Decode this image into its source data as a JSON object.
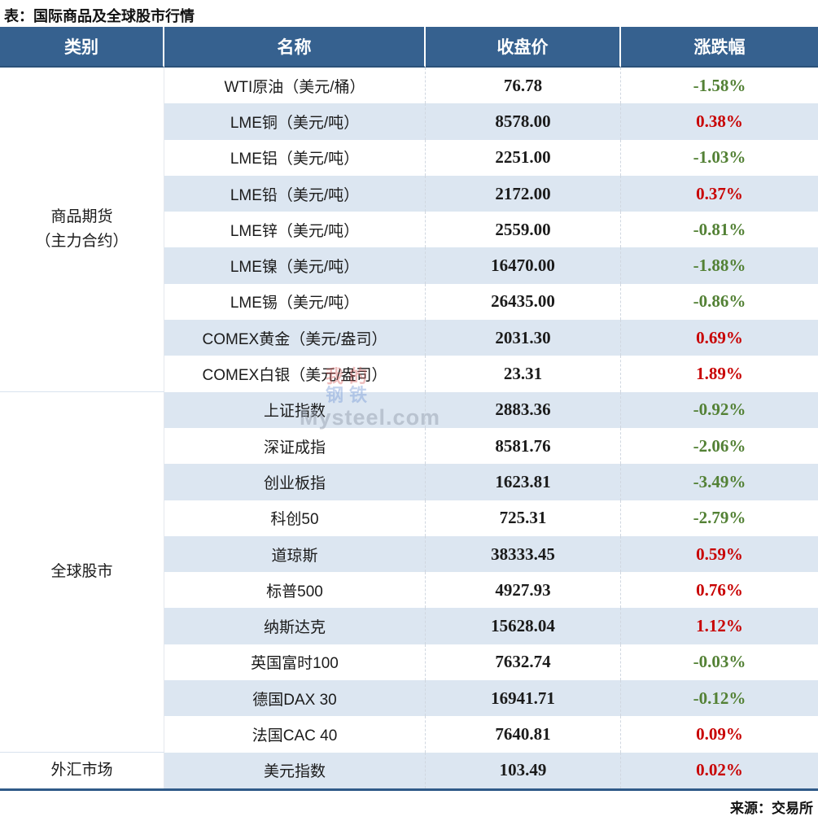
{
  "page_title": "表：国际商品及全球股市行情",
  "chart_data": {
    "type": "table",
    "title": "表：国际商品及全球股市行情",
    "columns": [
      "类别",
      "名称",
      "收盘价",
      "涨跌幅"
    ],
    "groups": [
      {
        "category": "商品期货（主力合约）",
        "category_display": "商品期货\n（主力合约）",
        "rows": [
          {
            "name": "WTI原油（美元/桶）",
            "close": "76.78",
            "change": "-1.58%"
          },
          {
            "name": "LME铜（美元/吨）",
            "close": "8578.00",
            "change": "0.38%"
          },
          {
            "name": "LME铝（美元/吨）",
            "close": "2251.00",
            "change": "-1.03%"
          },
          {
            "name": "LME铅（美元/吨）",
            "close": "2172.00",
            "change": "0.37%"
          },
          {
            "name": "LME锌（美元/吨）",
            "close": "2559.00",
            "change": "-0.81%"
          },
          {
            "name": "LME镍（美元/吨）",
            "close": "16470.00",
            "change": "-1.88%"
          },
          {
            "name": "LME锡（美元/吨）",
            "close": "26435.00",
            "change": "-0.86%"
          },
          {
            "name": "COMEX黄金（美元/盎司）",
            "close": "2031.30",
            "change": "0.69%"
          },
          {
            "name": "COMEX白银（美元/盎司）",
            "close": "23.31",
            "change": "1.89%"
          }
        ]
      },
      {
        "category": "全球股市",
        "rows": [
          {
            "name": "上证指数",
            "close": "2883.36",
            "change": "-0.92%"
          },
          {
            "name": "深证成指",
            "close": "8581.76",
            "change": "-2.06%"
          },
          {
            "name": "创业板指",
            "close": "1623.81",
            "change": "-3.49%"
          },
          {
            "name": "科创50",
            "close": "725.31",
            "change": "-2.79%"
          },
          {
            "name": "道琼斯",
            "close": "38333.45",
            "change": "0.59%"
          },
          {
            "name": "标普500",
            "close": "4927.93",
            "change": "0.76%"
          },
          {
            "name": "纳斯达克",
            "close": "15628.04",
            "change": "1.12%"
          },
          {
            "name": "英国富时100",
            "close": "7632.74",
            "change": "-0.03%"
          },
          {
            "name": "德国DAX 30",
            "close": "16941.71",
            "change": "-0.12%"
          },
          {
            "name": "法国CAC 40",
            "close": "7640.81",
            "change": "0.09%"
          }
        ]
      },
      {
        "category": "外汇市场",
        "rows": [
          {
            "name": "美元指数",
            "close": "103.49",
            "change": "0.02%"
          }
        ]
      }
    ],
    "source": "来源：交易所",
    "layout": {
      "up_color_meaning": "red = rise",
      "down_color_meaning": "green = fall",
      "stripes": "alternating white / light blue"
    }
  },
  "watermark": {
    "cn_top": "我的",
    "cn_bottom": "钢铁",
    "en": "Mysteel.com"
  },
  "colors": {
    "header_bg": "#36618F",
    "stripe": "#DCE6F1",
    "up_red": "#C80000",
    "down_green": "#538135",
    "table_border": "#2F5A88"
  }
}
